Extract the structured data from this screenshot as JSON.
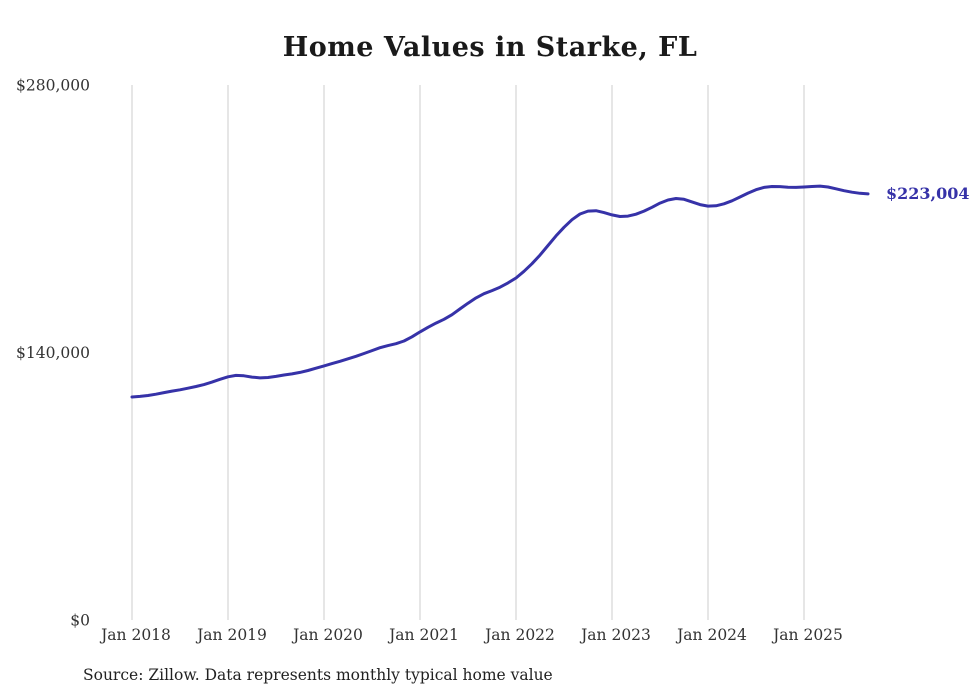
{
  "chart_data": {
    "type": "line",
    "title": "Home Values in Starke, FL",
    "source_note": "Source: Zillow. Data represents monthly typical home value",
    "end_label": "$223,004",
    "line_color": "#3632a8",
    "grid_color": "#cccccc",
    "ylim": [
      0,
      280000
    ],
    "y_ticks": [
      {
        "label": "$0",
        "value": 0
      },
      {
        "label": "$140,000",
        "value": 140000
      },
      {
        "label": "$280,000",
        "value": 280000
      }
    ],
    "x_tick_labels": [
      "Jan 2018",
      "Jan 2019",
      "Jan 2020",
      "Jan 2021",
      "Jan 2022",
      "Jan 2023",
      "Jan 2024",
      "Jan 2025"
    ],
    "x_start": "Jan 2018",
    "x_interval": "monthly",
    "legend": "none",
    "grid": "vertical-only",
    "series": [
      {
        "name": "Typical home value",
        "monthly_values": [
          116700,
          117000,
          117500,
          118200,
          119000,
          119800,
          120500,
          121300,
          122200,
          123200,
          124500,
          126000,
          127300,
          128000,
          127800,
          127100,
          126700,
          126900,
          127500,
          128200,
          128800,
          129600,
          130600,
          131800,
          133000,
          134200,
          135400,
          136700,
          138000,
          139500,
          141000,
          142500,
          143600,
          144600,
          146000,
          148200,
          150800,
          153200,
          155400,
          157400,
          159800,
          162800,
          165800,
          168600,
          170800,
          172400,
          174200,
          176400,
          179000,
          182500,
          186500,
          191000,
          196000,
          201000,
          205500,
          209500,
          212500,
          214000,
          214200,
          213200,
          212000,
          211200,
          211400,
          212400,
          214000,
          216000,
          218200,
          219800,
          220600,
          220200,
          218800,
          217400,
          216600,
          216800,
          217800,
          219400,
          221400,
          223400,
          225200,
          226400,
          226900,
          226800,
          226500,
          226400,
          226600,
          226900,
          227100,
          226600,
          225700,
          224700,
          223900,
          223300,
          223004
        ]
      }
    ]
  }
}
